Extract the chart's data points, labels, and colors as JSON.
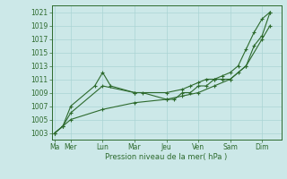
{
  "background_color": "#cce8e8",
  "grid_color": "#aad4d4",
  "line_color": "#2d6a2d",
  "ylabel": "Pression niveau de la mer( hPa )",
  "ylim": [
    1002,
    1022
  ],
  "yticks": [
    1003,
    1005,
    1007,
    1009,
    1011,
    1013,
    1015,
    1017,
    1019,
    1021
  ],
  "xtick_labels": [
    "Ma",
    "Mer",
    "Lun",
    "Mar",
    "Jeu",
    "Ven",
    "Sam",
    "Dim"
  ],
  "xtick_positions": [
    0,
    1,
    3,
    5,
    7,
    9,
    11,
    13
  ],
  "xlim": [
    -0.2,
    14.2
  ],
  "series1": {
    "x": [
      0,
      0.5,
      1,
      3,
      5,
      7,
      8,
      8.5,
      9,
      9.5,
      10,
      10.5,
      11,
      11.5,
      12,
      12.5,
      13,
      13.5
    ],
    "y": [
      1003,
      1004,
      1006,
      1010,
      1009,
      1009,
      1009.5,
      1010,
      1010.5,
      1011,
      1011,
      1011.5,
      1012,
      1013,
      1015.5,
      1018,
      1020,
      1021
    ]
  },
  "series2": {
    "x": [
      0,
      0.5,
      1,
      2.5,
      3,
      3.5,
      5,
      5.5,
      7,
      7.5,
      8,
      8.5,
      9,
      9.5,
      10,
      10.5,
      11,
      11.5,
      12,
      12.5,
      13,
      13.5
    ],
    "y": [
      1003,
      1004,
      1007,
      1010,
      1012,
      1010,
      1009,
      1009,
      1008,
      1008,
      1009,
      1009,
      1010,
      1010,
      1011,
      1011,
      1011,
      1012,
      1013,
      1016,
      1017.5,
      1021
    ]
  },
  "series3": {
    "x": [
      0,
      0.5,
      1,
      3,
      5,
      7,
      8,
      9,
      10,
      11,
      12,
      13,
      13.5
    ],
    "y": [
      1003,
      1004,
      1005,
      1006.5,
      1007.5,
      1008,
      1008.5,
      1009,
      1010,
      1011,
      1013,
      1017,
      1019
    ]
  }
}
